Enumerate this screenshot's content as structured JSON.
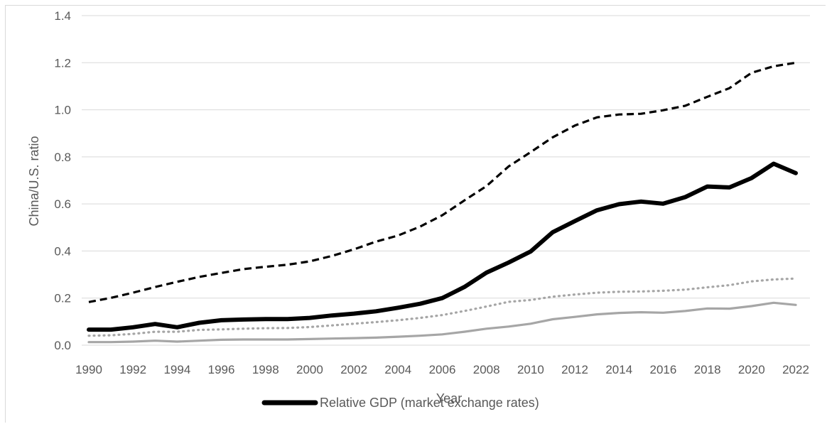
{
  "chart_data": {
    "type": "line",
    "title": "",
    "xlabel": "Year",
    "ylabel": "China/U.S. ratio",
    "ylim": [
      0,
      1.4
    ],
    "yticks": [
      "0.0",
      "0.2",
      "0.4",
      "0.6",
      "0.8",
      "1.0",
      "1.2",
      "1.4"
    ],
    "xticks": [
      "1990",
      "1992",
      "1994",
      "1996",
      "1998",
      "2000",
      "2002",
      "2004",
      "2006",
      "2008",
      "2010",
      "2012",
      "2014",
      "2016",
      "2018",
      "2020",
      "2022"
    ],
    "grid": "horizontal",
    "legend_position": "bottom",
    "x": [
      1990,
      1991,
      1992,
      1993,
      1994,
      1995,
      1996,
      1997,
      1998,
      1999,
      2000,
      2001,
      2002,
      2003,
      2004,
      2005,
      2006,
      2007,
      2008,
      2009,
      2010,
      2011,
      2012,
      2013,
      2014,
      2015,
      2016,
      2017,
      2018,
      2019,
      2020,
      2021,
      2022
    ],
    "series": [
      {
        "name": "Relative GDP (market exchange rates)",
        "style": "solid-thick",
        "color": "#000000",
        "values": [
          0.066,
          0.066,
          0.076,
          0.09,
          0.076,
          0.095,
          0.106,
          0.109,
          0.111,
          0.111,
          0.116,
          0.126,
          0.134,
          0.144,
          0.159,
          0.176,
          0.2,
          0.247,
          0.308,
          0.351,
          0.398,
          0.48,
          0.527,
          0.573,
          0.599,
          0.61,
          0.601,
          0.629,
          0.674,
          0.67,
          0.71,
          0.771,
          0.731
        ]
      },
      {
        "style": "dashed",
        "color": "#000000",
        "values": [
          0.183,
          0.201,
          0.223,
          0.247,
          0.269,
          0.29,
          0.307,
          0.323,
          0.333,
          0.342,
          0.356,
          0.379,
          0.407,
          0.44,
          0.466,
          0.504,
          0.552,
          0.615,
          0.676,
          0.759,
          0.82,
          0.883,
          0.933,
          0.968,
          0.98,
          0.983,
          0.998,
          1.017,
          1.055,
          1.092,
          1.157,
          1.185,
          1.2
        ]
      },
      {
        "style": "dotted",
        "color": "#a6a6a6",
        "values": [
          0.04,
          0.042,
          0.048,
          0.057,
          0.057,
          0.065,
          0.067,
          0.07,
          0.072,
          0.073,
          0.077,
          0.084,
          0.091,
          0.098,
          0.106,
          0.116,
          0.128,
          0.145,
          0.164,
          0.184,
          0.192,
          0.206,
          0.215,
          0.223,
          0.227,
          0.228,
          0.231,
          0.236,
          0.246,
          0.255,
          0.271,
          0.279,
          0.283
        ]
      },
      {
        "style": "solid",
        "color": "#a6a6a6",
        "values": [
          0.013,
          0.013,
          0.015,
          0.019,
          0.015,
          0.019,
          0.023,
          0.024,
          0.024,
          0.024,
          0.026,
          0.028,
          0.03,
          0.032,
          0.036,
          0.04,
          0.046,
          0.057,
          0.07,
          0.079,
          0.091,
          0.11,
          0.12,
          0.131,
          0.137,
          0.14,
          0.138,
          0.145,
          0.156,
          0.155,
          0.166,
          0.18,
          0.171
        ]
      }
    ]
  }
}
